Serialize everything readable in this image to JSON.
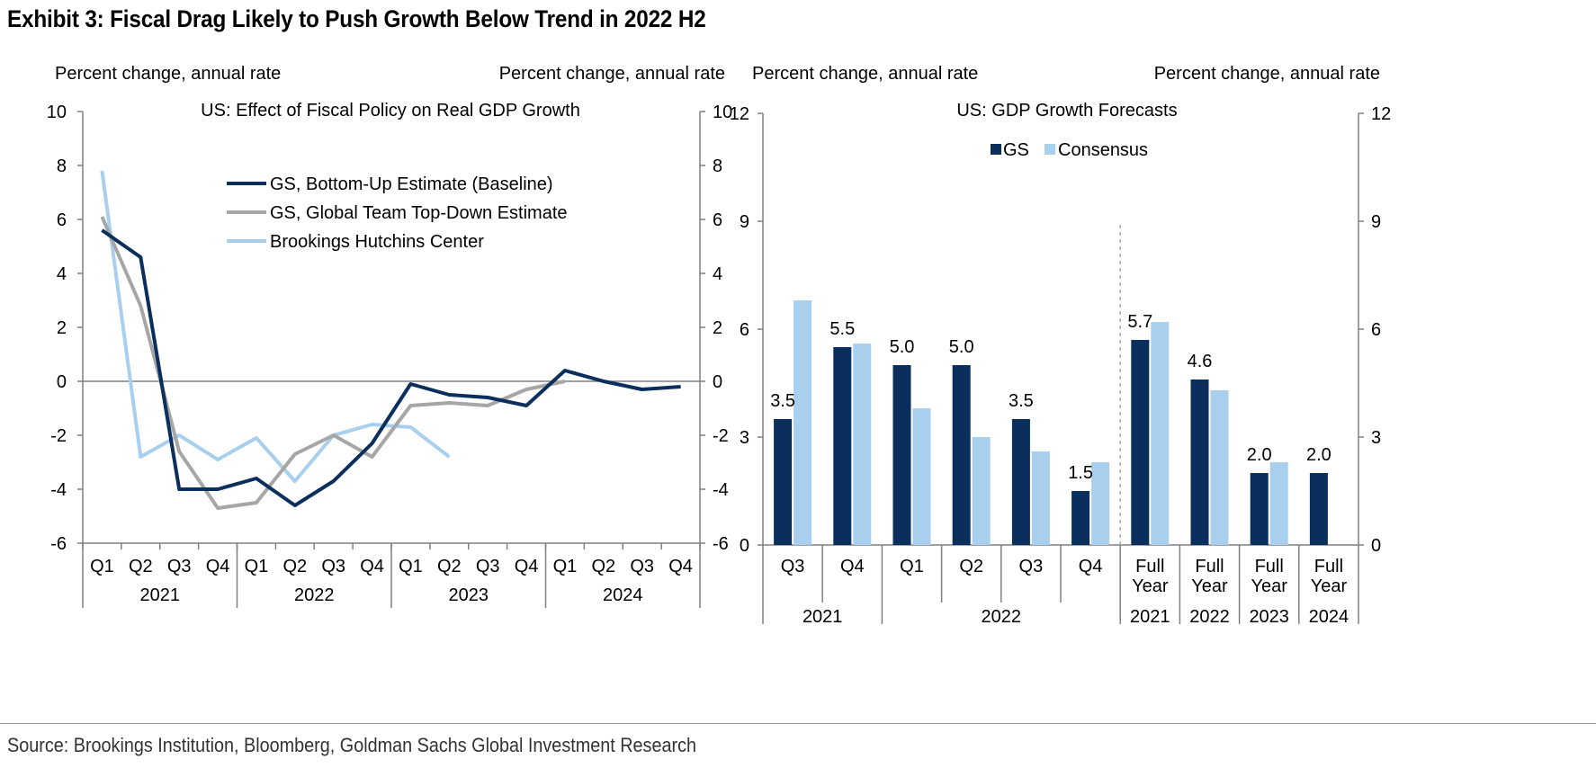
{
  "title": "Exhibit 3: Fiscal Drag Likely to Push Growth Below Trend in 2022 H2",
  "source": "Source: Brookings Institution, Bloomberg, Goldman Sachs Global Investment Research",
  "chart_data": [
    {
      "type": "line",
      "title": "US: Effect of Fiscal Policy on Real GDP Growth",
      "ylabel_left": "Percent change, annual rate",
      "ylabel_right": "Percent change, annual rate",
      "ylim": [
        -6,
        10
      ],
      "yticks": [
        -6,
        -4,
        -2,
        0,
        2,
        4,
        6,
        8,
        10
      ],
      "x": [
        "Q1",
        "Q2",
        "Q3",
        "Q4",
        "Q1",
        "Q2",
        "Q3",
        "Q4",
        "Q1",
        "Q2",
        "Q3",
        "Q4",
        "Q1",
        "Q2",
        "Q3",
        "Q4"
      ],
      "year_groups": [
        {
          "label": "2021",
          "count": 4
        },
        {
          "label": "2022",
          "count": 4
        },
        {
          "label": "2023",
          "count": 4
        },
        {
          "label": "2024",
          "count": 4
        }
      ],
      "series": [
        {
          "name": "GS, Bottom-Up Estimate (Baseline)",
          "color": "#0b2f5c",
          "values": [
            5.6,
            4.6,
            -4.0,
            -4.0,
            -3.6,
            -4.6,
            -3.7,
            -2.3,
            -0.1,
            -0.5,
            -0.6,
            -0.9,
            0.4,
            0.0,
            -0.3,
            -0.2
          ]
        },
        {
          "name": "GS, Global Team Top-Down Estimate",
          "color": "#a6a6a6",
          "values": [
            6.1,
            2.8,
            -2.6,
            -4.7,
            -4.5,
            -2.7,
            -2.0,
            -2.8,
            -0.9,
            -0.8,
            -0.9,
            -0.3,
            0.0,
            null,
            null,
            null
          ]
        },
        {
          "name": "Brookings Hutchins Center",
          "color": "#a8cfee",
          "values": [
            7.8,
            -2.8,
            -2.0,
            -2.9,
            -2.1,
            -3.7,
            -2.0,
            -1.6,
            -1.7,
            -2.8,
            null,
            null,
            null,
            null,
            null,
            null
          ]
        }
      ],
      "legend": "upper-left"
    },
    {
      "type": "bar",
      "title": "US: GDP Growth Forecasts",
      "ylabel_left": "Percent change, annual rate",
      "ylabel_right": "Percent change, annual rate",
      "ylim": [
        0,
        12
      ],
      "yticks": [
        0,
        3,
        6,
        9,
        12
      ],
      "categories": [
        "Q3",
        "Q4",
        "Q1",
        "Q2",
        "Q3",
        "Q4",
        "Full Year",
        "Full Year",
        "Full Year",
        "Full Year"
      ],
      "group_labels": [
        {
          "label": "2021",
          "count": 2
        },
        {
          "label": "2022",
          "count": 4
        },
        {
          "label": "2021",
          "count": 1
        },
        {
          "label": "2022",
          "count": 1
        },
        {
          "label": "2023",
          "count": 1
        },
        {
          "label": "2024",
          "count": 1
        }
      ],
      "series": [
        {
          "name": "GS",
          "color": "#0b2f5c",
          "values": [
            3.5,
            5.5,
            5.0,
            5.0,
            3.5,
            1.5,
            5.7,
            4.6,
            2.0,
            2.0
          ]
        },
        {
          "name": "Consensus",
          "color": "#a8cfee",
          "values": [
            6.8,
            5.6,
            3.8,
            3.0,
            2.6,
            2.3,
            6.2,
            4.3,
            2.3,
            null
          ]
        }
      ],
      "data_labels": [
        "3.5",
        "5.5",
        "5.0",
        "5.0",
        "3.5",
        "1.5",
        "5.7",
        "4.6",
        "2.0",
        "2.0"
      ],
      "divider_after_index": 5,
      "legend": "top-center"
    }
  ]
}
